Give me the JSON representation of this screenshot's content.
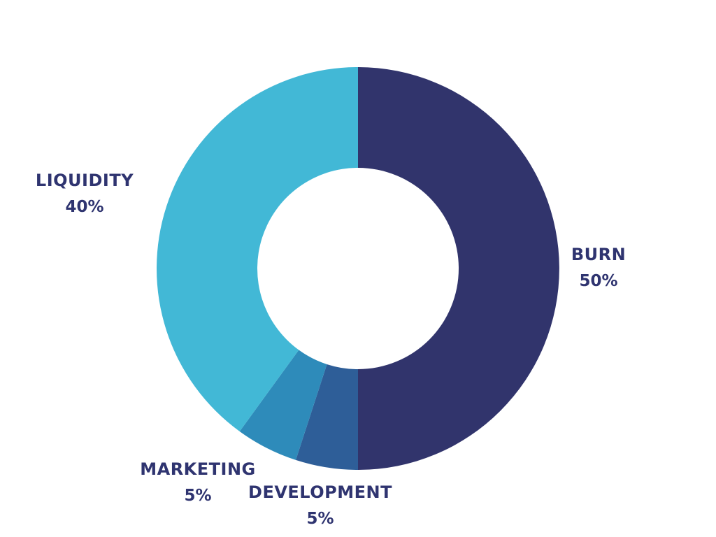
{
  "chart_data": {
    "type": "pie",
    "donut": true,
    "start_angle_deg": 0,
    "direction": "clockwise",
    "slices": [
      {
        "label": "BURN",
        "value": 50,
        "display": "50%",
        "color": "#31346c"
      },
      {
        "label": "DEVELOPMENT",
        "value": 5,
        "display": "5%",
        "color": "#2e5e98"
      },
      {
        "label": "MARKETING",
        "value": 5,
        "display": "5%",
        "color": "#2e8bba"
      },
      {
        "label": "LIQUIDITY",
        "value": 40,
        "display": "40%",
        "color": "#42b8d6"
      }
    ],
    "label_color": "#2f3470"
  }
}
